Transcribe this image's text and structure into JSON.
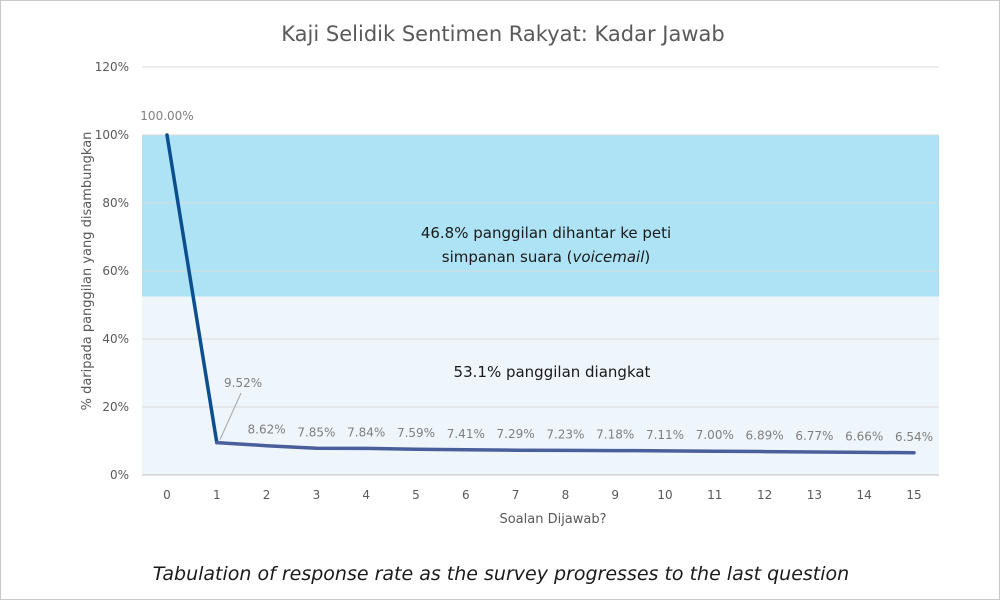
{
  "chart_data": {
    "type": "line",
    "title": "Kaji Selidik Sentimen Rakyat: Kadar Jawab",
    "xlabel": "Soalan Dijawab?",
    "ylabel": "% daripada panggilan yang disambungkan",
    "ylim": [
      0,
      120
    ],
    "yticks": [
      "0%",
      "20%",
      "40%",
      "60%",
      "80%",
      "100%",
      "120%"
    ],
    "x": [
      0,
      1,
      2,
      3,
      4,
      5,
      6,
      7,
      8,
      9,
      10,
      11,
      12,
      13,
      14,
      15
    ],
    "values": [
      100.0,
      9.52,
      8.62,
      7.85,
      7.84,
      7.59,
      7.41,
      7.29,
      7.23,
      7.18,
      7.11,
      7.0,
      6.89,
      6.77,
      6.66,
      6.54
    ],
    "data_labels": [
      "100.00%",
      "9.52%",
      "8.62%",
      "7.85%",
      "7.84%",
      "7.59%",
      "7.41%",
      "7.29%",
      "7.23%",
      "7.18%",
      "7.11%",
      "7.00%",
      "6.89%",
      "6.77%",
      "6.66%",
      "6.54%"
    ],
    "grid": true,
    "bands": [
      {
        "from": 52.5,
        "to": 100,
        "color": "#aee3f5",
        "text_lines": [
          "46.8% panggilan dihantar ke peti",
          "simpanan suara ("
        ],
        "italic": "voicemail",
        "close": ")"
      },
      {
        "from": 0,
        "to": 52.5,
        "color": "#eef6fc",
        "text_lines": [
          "53.1% panggilan diangkat"
        ]
      }
    ],
    "line_color_top": "#0b4f8f",
    "line_color": "#4a5e9c"
  },
  "caption": "Tabulation of response rate as the survey progresses to the last question"
}
